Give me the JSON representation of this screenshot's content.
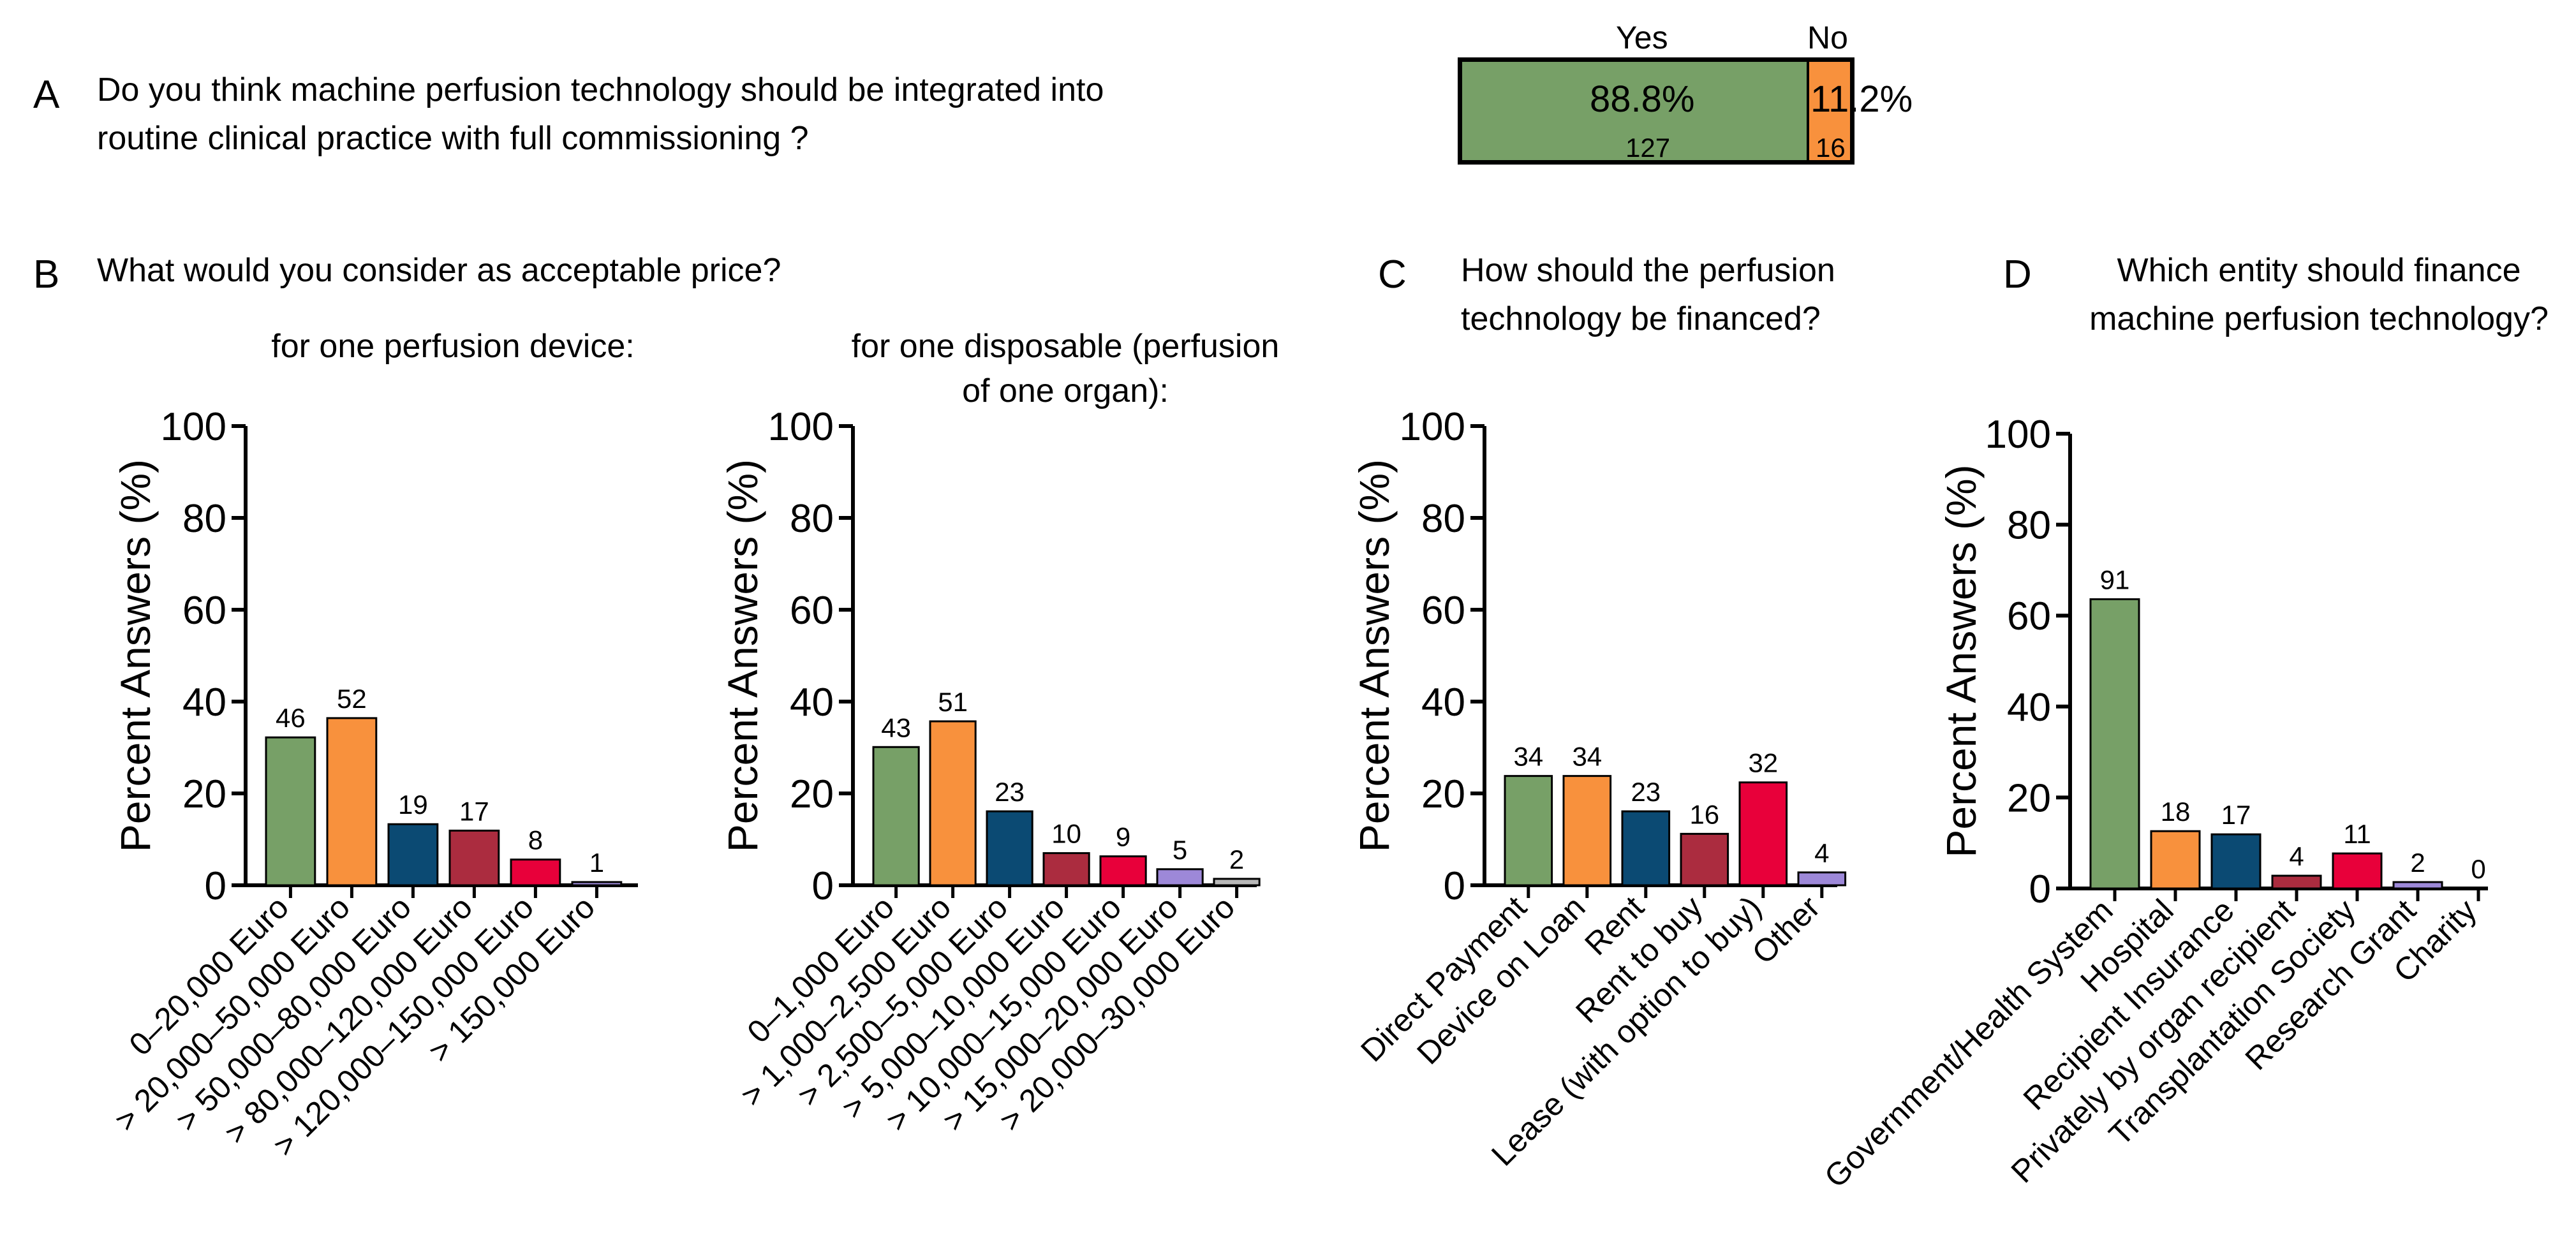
{
  "panel_a": {
    "letter": "A",
    "question_line1": "Do you think machine perfusion technology should be integrated into",
    "question_line2": "routine clinical practice with full commissioning ?",
    "yes_label": "Yes",
    "no_label": "No",
    "yes_percent": "88.8%",
    "no_percent": "11.2%",
    "yes_count": "127",
    "no_count": "16",
    "yes_fraction": 0.888,
    "colors": {
      "yes": "#77a067",
      "no": "#f8913d"
    }
  },
  "panel_b": {
    "letter": "B",
    "question": "What would you consider as acceptable price?",
    "device_title": "for one perfusion device:",
    "disposable_title_line1": "for one disposable (perfusion",
    "disposable_title_line2": "of one organ):"
  },
  "panel_c": {
    "letter": "C",
    "question_line1": "How should the perfusion",
    "question_line2": "technology be financed?"
  },
  "panel_d": {
    "letter": "D",
    "question_line1": "Which entity should finance",
    "question_line2": "machine perfusion technology?"
  },
  "chart_data": [
    {
      "type": "bar",
      "title": "for one perfusion device:",
      "ylabel": "Percent Answers (%)",
      "ylim": [
        0,
        100
      ],
      "yticks": [
        0,
        20,
        40,
        60,
        80,
        100
      ],
      "categories": [
        "0–20,000 Euro",
        "> 20,000–50,000 Euro",
        "> 50,000–80,000 Euro",
        "> 80,000–120,000 Euro",
        "> 120,000–150,000 Euro",
        "> 150,000 Euro"
      ],
      "values": [
        32.2,
        36.4,
        13.3,
        11.9,
        5.6,
        0.7
      ],
      "counts": [
        "46",
        "52",
        "19",
        "17",
        "8",
        "1"
      ],
      "colors": [
        "#77a067",
        "#f8913d",
        "#0b4a73",
        "#ab2c3f",
        "#e8003a",
        "#9d88d8"
      ]
    },
    {
      "type": "bar",
      "title": "for one disposable (perfusion of one organ):",
      "ylabel": "Percent Answers (%)",
      "ylim": [
        0,
        100
      ],
      "yticks": [
        0,
        20,
        40,
        60,
        80,
        100
      ],
      "categories": [
        "0–1,000 Euro",
        "> 1,000–2,500 Euro",
        "> 2,500–5,000 Euro",
        "> 5,000–10,000 Euro",
        "> 10,000–15,000 Euro",
        "> 15,000–20,000 Euro",
        "> 20,000–30,000 Euro"
      ],
      "values": [
        30.1,
        35.7,
        16.1,
        7.0,
        6.3,
        3.5,
        1.4
      ],
      "counts": [
        "43",
        "51",
        "23",
        "10",
        "9",
        "5",
        "2"
      ],
      "colors": [
        "#77a067",
        "#f8913d",
        "#0b4a73",
        "#ab2c3f",
        "#e8003a",
        "#9d88d8",
        "#b8b8b8"
      ]
    },
    {
      "type": "bar",
      "title": "How should the perfusion technology be financed?",
      "ylabel": "Percent Answers (%)",
      "ylim": [
        0,
        100
      ],
      "yticks": [
        0,
        20,
        40,
        60,
        80,
        100
      ],
      "categories": [
        "Direct Payment",
        "Device on Loan",
        "Rent",
        "Rent to buy",
        "Lease (with option to buy)",
        "Other"
      ],
      "values": [
        23.8,
        23.8,
        16.1,
        11.2,
        22.4,
        2.8
      ],
      "counts": [
        "34",
        "34",
        "23",
        "16",
        "32",
        "4"
      ],
      "colors": [
        "#77a067",
        "#f8913d",
        "#0b4a73",
        "#ab2c3f",
        "#e8003a",
        "#9d88d8"
      ]
    },
    {
      "type": "bar",
      "title": "Which entity should finance machine perfusion technology?",
      "ylabel": "Percent Answers (%)",
      "ylim": [
        0,
        100
      ],
      "yticks": [
        0,
        20,
        40,
        60,
        80,
        100
      ],
      "categories": [
        "Government/Health System",
        "Hospital",
        "Recipient Insurance",
        "Privately by organ recipient",
        "Transplantation Society",
        "Research Grant",
        "Charity"
      ],
      "values": [
        63.6,
        12.6,
        11.9,
        2.8,
        7.7,
        1.4,
        0.0
      ],
      "counts": [
        "91",
        "18",
        "17",
        "4",
        "11",
        "2",
        "0"
      ],
      "colors": [
        "#77a067",
        "#f8913d",
        "#0b4a73",
        "#ab2c3f",
        "#e8003a",
        "#9d88d8",
        "#b8b8b8"
      ]
    }
  ]
}
